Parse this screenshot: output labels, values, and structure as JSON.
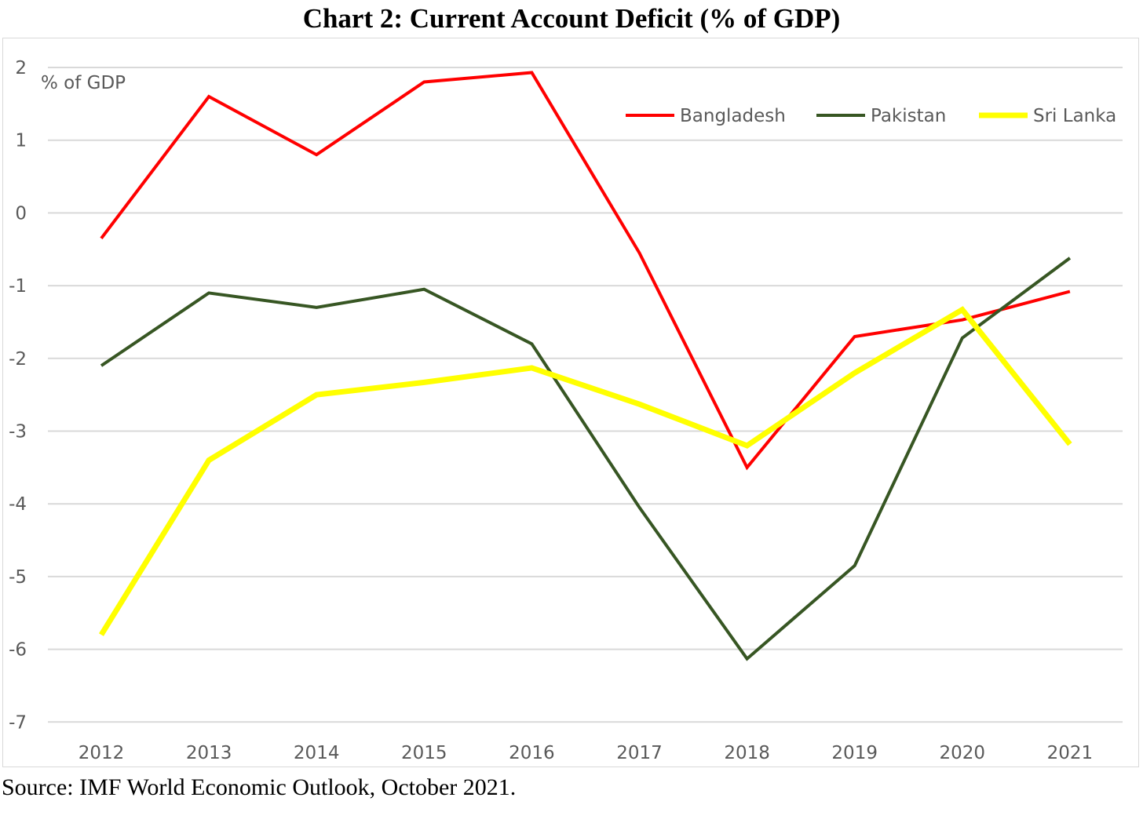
{
  "chart_data": {
    "type": "line",
    "title": "Chart 2: Current Account Deficit (% of GDP)",
    "ylabel": "% of GDP",
    "xlabel": "",
    "categories": [
      "2012",
      "2013",
      "2014",
      "2015",
      "2016",
      "2017",
      "2018",
      "2019",
      "2020",
      "2021"
    ],
    "ylim": [
      -7,
      2
    ],
    "yticks": [
      2,
      1,
      0,
      -1,
      -2,
      -3,
      -4,
      -5,
      -6,
      -7
    ],
    "grid": true,
    "legend_position": "top-right",
    "series": [
      {
        "name": "Bangladesh",
        "color": "#ff0000",
        "values": [
          -0.35,
          1.6,
          0.8,
          1.8,
          1.93,
          -0.55,
          -3.5,
          -1.7,
          -1.47,
          -1.08
        ]
      },
      {
        "name": "Pakistan",
        "color": "#375623",
        "values": [
          -2.1,
          -1.1,
          -1.3,
          -1.05,
          -1.8,
          -4.05,
          -6.13,
          -4.85,
          -1.72,
          -0.62
        ]
      },
      {
        "name": "Sri Lanka",
        "color": "#ffff00",
        "values": [
          -5.8,
          -3.4,
          -2.5,
          -2.33,
          -2.13,
          -2.63,
          -3.2,
          -2.2,
          -1.33,
          -3.18
        ]
      }
    ]
  },
  "source": "Source: IMF World Economic Outlook, October 2021."
}
